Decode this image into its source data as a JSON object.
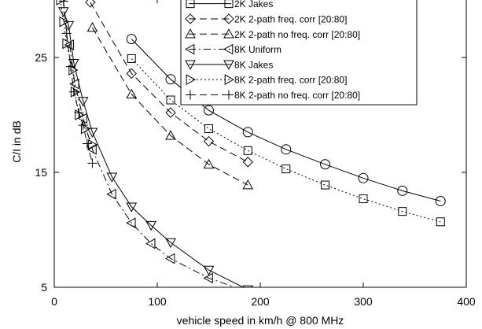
{
  "chart_data": {
    "type": "line",
    "xlabel": "vehicle speed in km/h @ 800 MHz",
    "ylabel": "C/I in dB",
    "xlim": [
      0,
      400
    ],
    "ylim": [
      5,
      30
    ],
    "xticks": [
      0,
      100,
      200,
      300,
      400
    ],
    "yticks": [
      5,
      15,
      25
    ],
    "grid": false,
    "legend_position": "top-right",
    "series": [
      {
        "name": "2K Jakes",
        "marker": "square",
        "dash": "solid",
        "points": []
      },
      {
        "name": "2K 2-path freq. corr [20:80]",
        "marker": "diamond",
        "dash": "dashed",
        "points": [
          [
            35,
            29.8
          ],
          [
            75,
            23.6
          ],
          [
            113,
            20.2
          ],
          [
            150,
            17.7
          ],
          [
            188,
            15.9
          ]
        ]
      },
      {
        "name": "2K 2-path no freq. corr [20:80]",
        "marker": "triangle-up",
        "dash": "dashed",
        "points": [
          [
            37,
            27.6
          ],
          [
            75,
            21.8
          ],
          [
            113,
            18.2
          ],
          [
            150,
            15.7
          ],
          [
            188,
            13.9
          ]
        ]
      },
      {
        "name": "8K Uniform",
        "marker": "triangle-left",
        "dash": "dashdot",
        "points": [
          [
            15,
            26.1
          ],
          [
            20,
            22.7
          ],
          [
            28,
            19.7
          ],
          [
            37,
            17.0
          ],
          [
            56,
            13.1
          ],
          [
            75,
            10.6
          ],
          [
            94,
            8.8
          ],
          [
            113,
            7.5
          ],
          [
            150,
            5.8
          ],
          [
            188,
            4.6
          ]
        ]
      },
      {
        "name": "8K Jakes",
        "marker": "triangle-down",
        "dash": "solid",
        "points": [
          [
            9,
            29.0
          ],
          [
            14,
            27.8
          ],
          [
            19,
            24.5
          ],
          [
            28,
            21.2
          ],
          [
            37,
            18.5
          ],
          [
            56,
            14.6
          ],
          [
            75,
            12.0
          ],
          [
            94,
            10.4
          ],
          [
            113,
            8.9
          ],
          [
            150,
            6.5
          ],
          [
            188,
            4.8
          ]
        ]
      },
      {
        "name": "8K 2-path freq. corr [20:80]",
        "marker": "triangle-right",
        "dash": "dotted",
        "points": [
          [
            6,
            30.0
          ],
          [
            9,
            28.1
          ],
          [
            12,
            26.2
          ],
          [
            18,
            23.9
          ],
          [
            20,
            22.0
          ],
          [
            24,
            20.0
          ],
          [
            30,
            18.8
          ],
          [
            37,
            17.4
          ]
        ]
      },
      {
        "name": "8K 2-path no freq. corr [20:80]",
        "marker": "plus",
        "dash": "dashed",
        "points": [
          [
            9,
            29.9
          ],
          [
            12,
            27.1
          ],
          [
            16,
            24.2
          ],
          [
            19,
            22.0
          ],
          [
            24,
            20.2
          ],
          [
            28,
            19.1
          ],
          [
            32,
            17.5
          ],
          [
            37,
            15.8
          ]
        ]
      }
    ],
    "unlabeled_series": [
      {
        "marker": "circle",
        "dash": "solid",
        "points": [
          [
            75,
            26.6
          ],
          [
            113,
            23.1
          ],
          [
            150,
            20.4
          ],
          [
            188,
            18.5
          ],
          [
            225,
            17.0
          ],
          [
            263,
            15.7
          ],
          [
            300,
            14.5
          ],
          [
            338,
            13.4
          ],
          [
            375,
            12.5
          ]
        ]
      },
      {
        "marker": "square",
        "dash": "dotted",
        "points": [
          [
            75,
            24.9
          ],
          [
            113,
            21.3
          ],
          [
            150,
            18.8
          ],
          [
            188,
            16.9
          ],
          [
            225,
            15.3
          ],
          [
            263,
            13.9
          ],
          [
            300,
            12.7
          ],
          [
            338,
            11.6
          ],
          [
            375,
            10.7
          ]
        ]
      }
    ]
  }
}
